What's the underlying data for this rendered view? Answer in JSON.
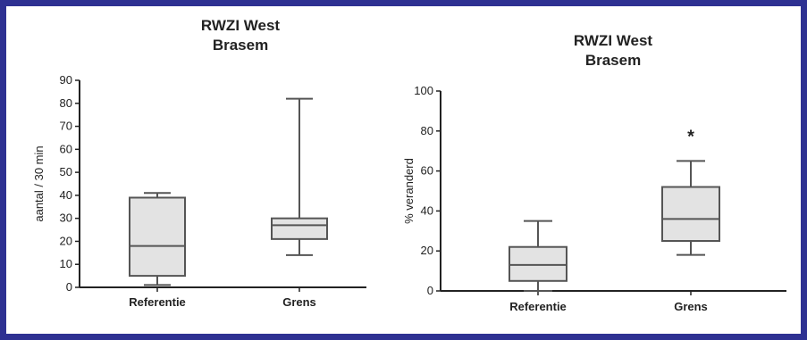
{
  "chart_data": [
    {
      "type": "box",
      "title_lines": [
        "RWZI West",
        "Brasem"
      ],
      "ylabel": "aantal / 30 min",
      "ylim": [
        0,
        90
      ],
      "yticks": [
        0,
        10,
        20,
        30,
        40,
        50,
        60,
        70,
        80,
        90
      ],
      "categories": [
        "Referentie",
        "Grens"
      ],
      "boxes": [
        {
          "category": "Referentie",
          "min": 1,
          "q1": 5,
          "median": 18,
          "q3": 39,
          "max": 41
        },
        {
          "category": "Grens",
          "min": 14,
          "q1": 21,
          "median": 27,
          "q3": 30,
          "max": 82
        }
      ],
      "annotations": []
    },
    {
      "type": "box",
      "title_lines": [
        "RWZI West",
        "Brasem"
      ],
      "ylabel": "% veranderd",
      "ylim": [
        0,
        100
      ],
      "yticks": [
        0,
        20,
        40,
        60,
        80,
        100
      ],
      "categories": [
        "Referentie",
        "Grens"
      ],
      "boxes": [
        {
          "category": "Referentie",
          "min": 0,
          "q1": 5,
          "median": 13,
          "q3": 22,
          "max": 35
        },
        {
          "category": "Grens",
          "min": 18,
          "q1": 25,
          "median": 36,
          "q3": 52,
          "max": 65
        }
      ],
      "annotations": [
        {
          "category": "Grens",
          "text": "*",
          "y": 78
        }
      ]
    }
  ],
  "colors": {
    "frame": "#2e3192",
    "box_fill": "#e3e3e3",
    "axis": "#222222",
    "line": "#555555"
  }
}
